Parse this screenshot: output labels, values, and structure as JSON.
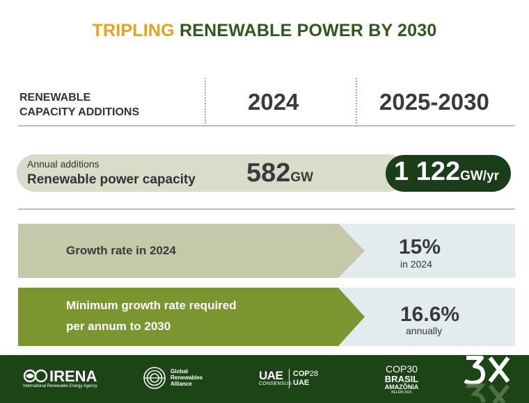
{
  "title": {
    "highlight": "TRIPLING",
    "rest": " RENEWABLE POWER BY 2030"
  },
  "header": {
    "label_line1": "RENEWABLE",
    "label_line2": "CAPACITY ADDITIONS",
    "col_2024": "2024",
    "col_2030": "2025-2030"
  },
  "capacity": {
    "small_label": "Annual additions",
    "big_label": "Renewable power capacity",
    "value_2024": "582",
    "unit_2024": "GW",
    "value_2030": "1 122",
    "unit_2030": "GW/yr"
  },
  "growth": {
    "label": "Growth rate in 2024",
    "value": "15%",
    "sub": "in 2024"
  },
  "required": {
    "label_line1": "Minimum growth rate required",
    "label_line2": "per annum to 2030",
    "value": "16.6%",
    "sub": "annually"
  },
  "colors": {
    "title_highlight": "#e9a21b",
    "title_rest": "#2d5a1c",
    "pill_bg": "#d8dcc8",
    "dark_pill": "#1b3d1a",
    "band_growth": "#c5c8a9",
    "band_required": "#7b9630",
    "band_light": "#e2ebee",
    "footer": "#1c4417"
  },
  "footer": {
    "irena": {
      "name": "IRENA",
      "tagline": "International Renewable Energy Agency",
      "icon": "irena-circles-icon"
    },
    "gra": {
      "line1": "Global",
      "line2": "Renewables",
      "line3": "Alliance",
      "icon": "gra-circle-icon"
    },
    "uae": {
      "uae": "UAE",
      "consensus": "CONSENSUS",
      "cop": "COP",
      "cop_num": "28",
      "cop_uae": "UAE"
    },
    "cop30": {
      "cop": "COP",
      "cop_num": "30",
      "brasil": "BRASIL",
      "amazonia": "AMAZÔNIA",
      "city": "BELÉM 2025"
    },
    "tripling": {
      "mark": "3X",
      "icon": "tripling-3x-icon"
    }
  }
}
